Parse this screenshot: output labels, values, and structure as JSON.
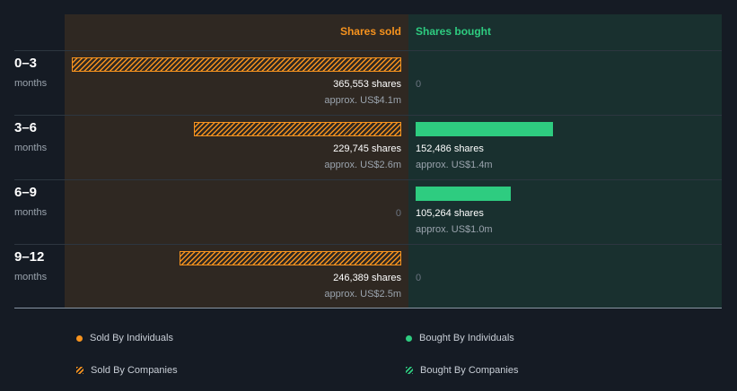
{
  "chart_data": {
    "type": "bar",
    "headers": {
      "sold": "Shares sold",
      "bought": "Shares bought"
    },
    "colors": {
      "sold": "#f7931e",
      "bought": "#2ecc80"
    },
    "max_shares": 365553,
    "rows": [
      {
        "period": "0–3",
        "unit": "months",
        "sold": {
          "shares": 365553,
          "shares_label": "365,553 shares",
          "approx": "approx. US$4.1m",
          "series": "Sold By Companies"
        },
        "bought": {
          "shares": 0,
          "zero_label": "0"
        }
      },
      {
        "period": "3–6",
        "unit": "months",
        "sold": {
          "shares": 229745,
          "shares_label": "229,745 shares",
          "approx": "approx. US$2.6m",
          "series": "Sold By Companies"
        },
        "bought": {
          "shares": 152486,
          "shares_label": "152,486 shares",
          "approx": "approx. US$1.4m",
          "series": "Bought By Individuals"
        }
      },
      {
        "period": "6–9",
        "unit": "months",
        "sold": {
          "shares": 0,
          "zero_label": "0"
        },
        "bought": {
          "shares": 105264,
          "shares_label": "105,264 shares",
          "approx": "approx. US$1.0m",
          "series": "Bought By Individuals"
        }
      },
      {
        "period": "9–12",
        "unit": "months",
        "sold": {
          "shares": 246389,
          "shares_label": "246,389 shares",
          "approx": "approx. US$2.5m",
          "series": "Sold By Companies"
        },
        "bought": {
          "shares": 0,
          "zero_label": "0"
        }
      }
    ],
    "legend": [
      {
        "label": "Sold By Individuals",
        "style": "dot",
        "color": "#f7931e"
      },
      {
        "label": "Bought By Individuals",
        "style": "dot",
        "color": "#2ecc80"
      },
      {
        "label": "Sold By Companies",
        "style": "hatch",
        "color": "#f7931e"
      },
      {
        "label": "Bought By Companies",
        "style": "hatch",
        "color": "#2ecc80"
      }
    ]
  }
}
